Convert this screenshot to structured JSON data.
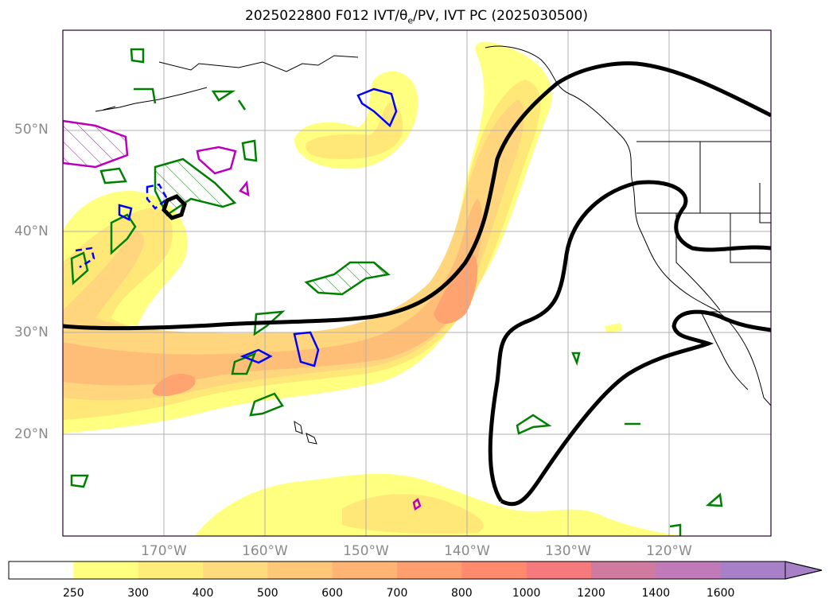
{
  "title": "2025022800 F012 IVT/θ",
  "title_sub": "e",
  "title_tail": "/PV, IVT PC (2025030500)",
  "map": {
    "lat_labels": [
      "50°N",
      "40°N",
      "30°N",
      "20°N"
    ],
    "lon_labels": [
      "170°W",
      "160°W",
      "150°W",
      "140°W",
      "130°W",
      "120°W"
    ],
    "grid": true,
    "colors": {
      "ivt_250": "#ffff80",
      "ivt_300": "#ffe878",
      "ivt_400": "#ffd67e",
      "ivt_500": "#ffbe78",
      "ivt_600": "#ffa370",
      "pc_line": "#000000",
      "pv_green": "#008000",
      "pv_blue": "#0000ff",
      "pv_magenta": "#bb00bb"
    }
  },
  "colorbar": {
    "labels": [
      "250",
      "300",
      "400",
      "500",
      "600",
      "700",
      "800",
      "1000",
      "1200",
      "1400",
      "1600"
    ],
    "colors": [
      "#ffffff",
      "#ffff80",
      "#ffed7a",
      "#ffdb7e",
      "#ffc878",
      "#ffb473",
      "#ff9f70",
      "#ff8a6e",
      "#f47a7e",
      "#d07aa0",
      "#c07ab8",
      "#a880c8"
    ],
    "extend": "max"
  }
}
